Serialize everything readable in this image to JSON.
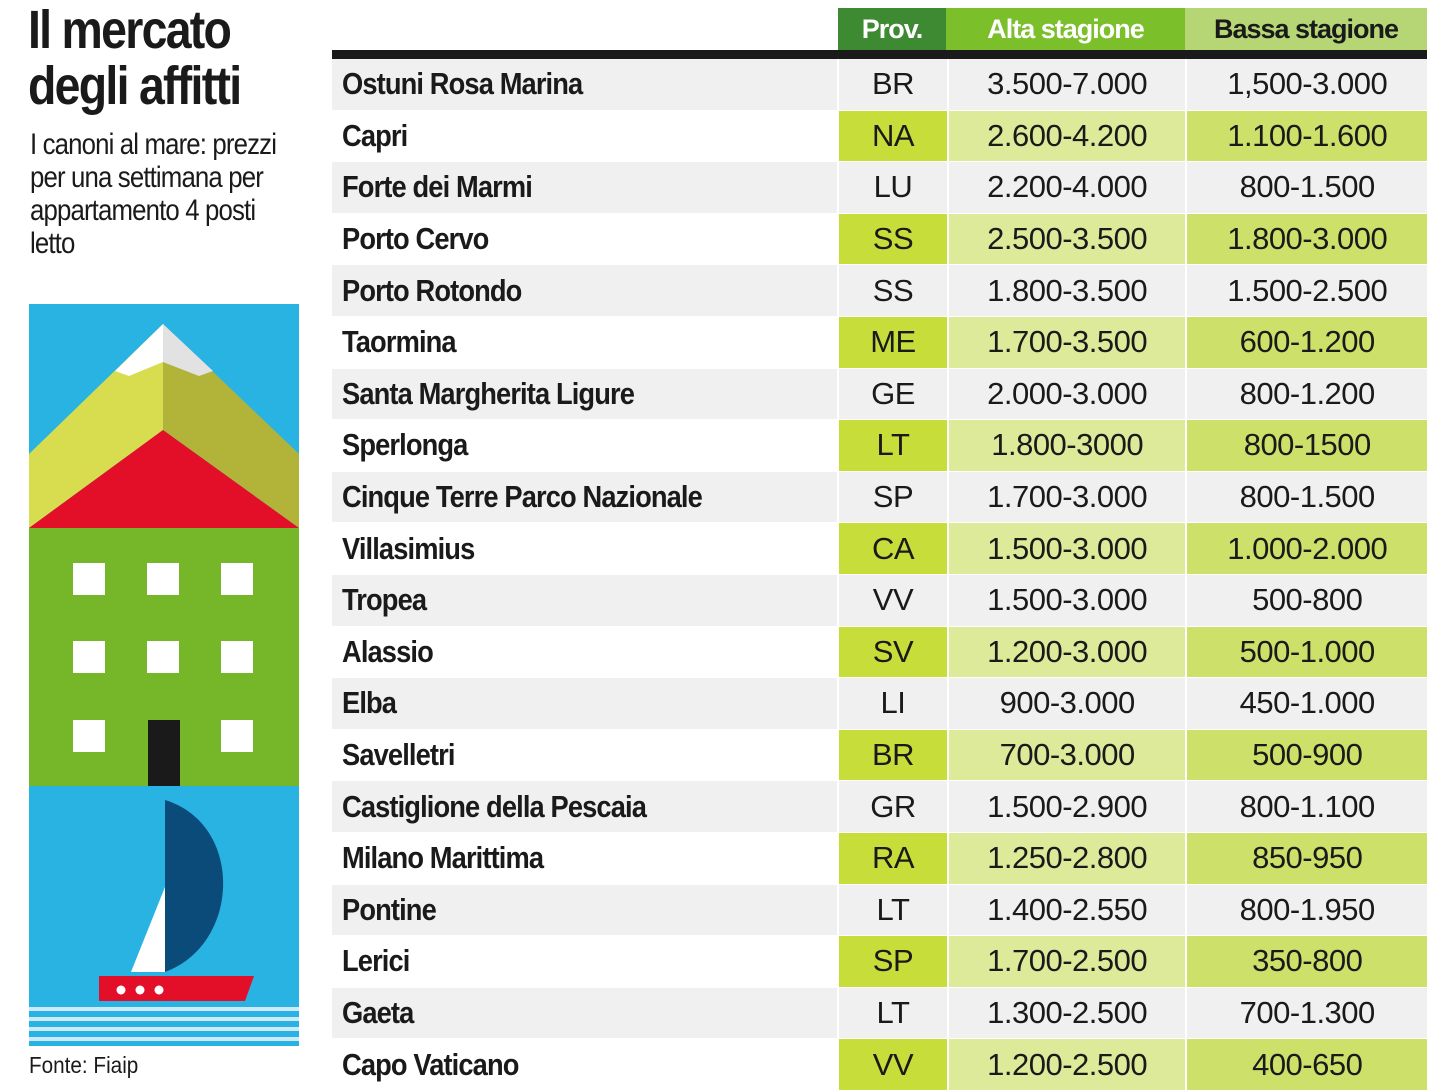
{
  "title": "Il mercato degli affitti",
  "subtitle": "I canoni al mare: prezzi per una settimana per appartamento 4 posti letto",
  "source": "Fonte: Fiaip",
  "colors": {
    "header_prov": "#3d8a32",
    "header_alta": "#7bbf2a",
    "header_bassa": "#b6d675",
    "sky": "#29b3e3",
    "building": "#76b729",
    "roof": "#e30f28",
    "sail": "#0b4b7a"
  },
  "chart_data": {
    "type": "table",
    "title": "Il mercato degli affitti",
    "subtitle": "I canoni al mare: prezzi per una settimana per appartamento 4 posti letto",
    "columns": [
      "",
      "Prov.",
      "Alta stagione",
      "Bassa stagione"
    ],
    "rows": [
      {
        "localita": "Ostuni Rosa Marina",
        "prov": "BR",
        "alta": "3.500-7.000",
        "bassa": "1,500-3.000"
      },
      {
        "localita": "Capri",
        "prov": "NA",
        "alta": "2.600-4.200",
        "bassa": "1.100-1.600"
      },
      {
        "localita": "Forte dei Marmi",
        "prov": "LU",
        "alta": "2.200-4.000",
        "bassa": "800-1.500"
      },
      {
        "localita": "Porto Cervo",
        "prov": "SS",
        "alta": "2.500-3.500",
        "bassa": "1.800-3.000"
      },
      {
        "localita": "Porto Rotondo",
        "prov": "SS",
        "alta": "1.800-3.500",
        "bassa": "1.500-2.500"
      },
      {
        "localita": "Taormina",
        "prov": "ME",
        "alta": "1.700-3.500",
        "bassa": "600-1.200"
      },
      {
        "localita": "Santa Margherita Ligure",
        "prov": "GE",
        "alta": "2.000-3.000",
        "bassa": "800-1.200"
      },
      {
        "localita": "Sperlonga",
        "prov": "LT",
        "alta": "1.800-3000",
        "bassa": "800-1500"
      },
      {
        "localita": "Cinque Terre Parco Nazionale",
        "prov": "SP",
        "alta": "1.700-3.000",
        "bassa": "800-1.500"
      },
      {
        "localita": "Villasimius",
        "prov": "CA",
        "alta": "1.500-3.000",
        "bassa": "1.000-2.000"
      },
      {
        "localita": "Tropea",
        "prov": "VV",
        "alta": "1.500-3.000",
        "bassa": "500-800"
      },
      {
        "localita": "Alassio",
        "prov": "SV",
        "alta": "1.200-3.000",
        "bassa": "500-1.000"
      },
      {
        "localita": "Elba",
        "prov": "LI",
        "alta": "900-3.000",
        "bassa": "450-1.000"
      },
      {
        "localita": "Savelletri",
        "prov": "BR",
        "alta": "700-3.000",
        "bassa": "500-900"
      },
      {
        "localita": "Castiglione della Pescaia",
        "prov": "GR",
        "alta": "1.500-2.900",
        "bassa": "800-1.100"
      },
      {
        "localita": "Milano Marittima",
        "prov": "RA",
        "alta": "1.250-2.800",
        "bassa": "850-950"
      },
      {
        "localita": "Pontine",
        "prov": "LT",
        "alta": "1.400-2.550",
        "bassa": "800-1.950"
      },
      {
        "localita": "Lerici",
        "prov": "SP",
        "alta": "1.700-2.500",
        "bassa": "350-800"
      },
      {
        "localita": "Gaeta",
        "prov": "LT",
        "alta": "1.300-2.500",
        "bassa": "700-1.300"
      },
      {
        "localita": "Capo Vaticano",
        "prov": "VV",
        "alta": "1.200-2.500",
        "bassa": "400-650"
      }
    ]
  }
}
